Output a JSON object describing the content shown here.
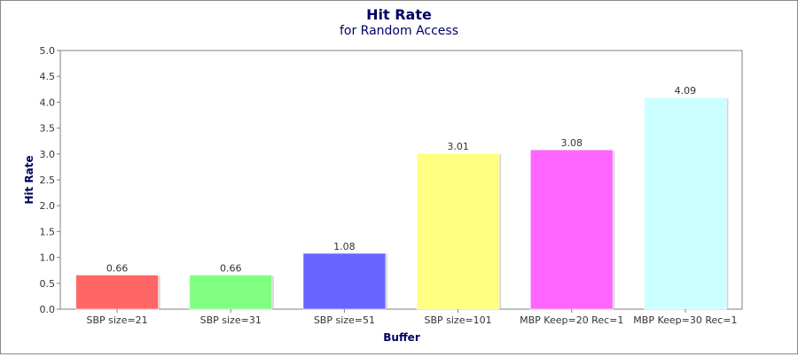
{
  "chart_data": {
    "type": "bar",
    "title": "Hit Rate",
    "subtitle": "for Random Access",
    "xlabel": "Buffer",
    "ylabel": "Hit Rate",
    "ylim": [
      0,
      5
    ],
    "yticks": [
      "0.0",
      "0.5",
      "1.0",
      "1.5",
      "2.0",
      "2.5",
      "3.0",
      "3.5",
      "4.0",
      "4.5",
      "5.0"
    ],
    "categories": [
      "SBP size=21",
      "SBP size=31",
      "SBP size=51",
      "SBP size=101",
      "MBP Keep=20 Rec=1",
      "MBP Keep=30 Rec=1"
    ],
    "values": [
      0.66,
      0.66,
      1.08,
      3.01,
      3.08,
      4.09
    ],
    "value_labels": [
      "0.66",
      "0.66",
      "1.08",
      "3.01",
      "3.08",
      "4.09"
    ],
    "colors": [
      "#ff6666",
      "#80ff80",
      "#6666ff",
      "#ffff80",
      "#ff66ff",
      "#ccffff"
    ],
    "title_color": "#000066",
    "grid": false,
    "legend": "none"
  }
}
